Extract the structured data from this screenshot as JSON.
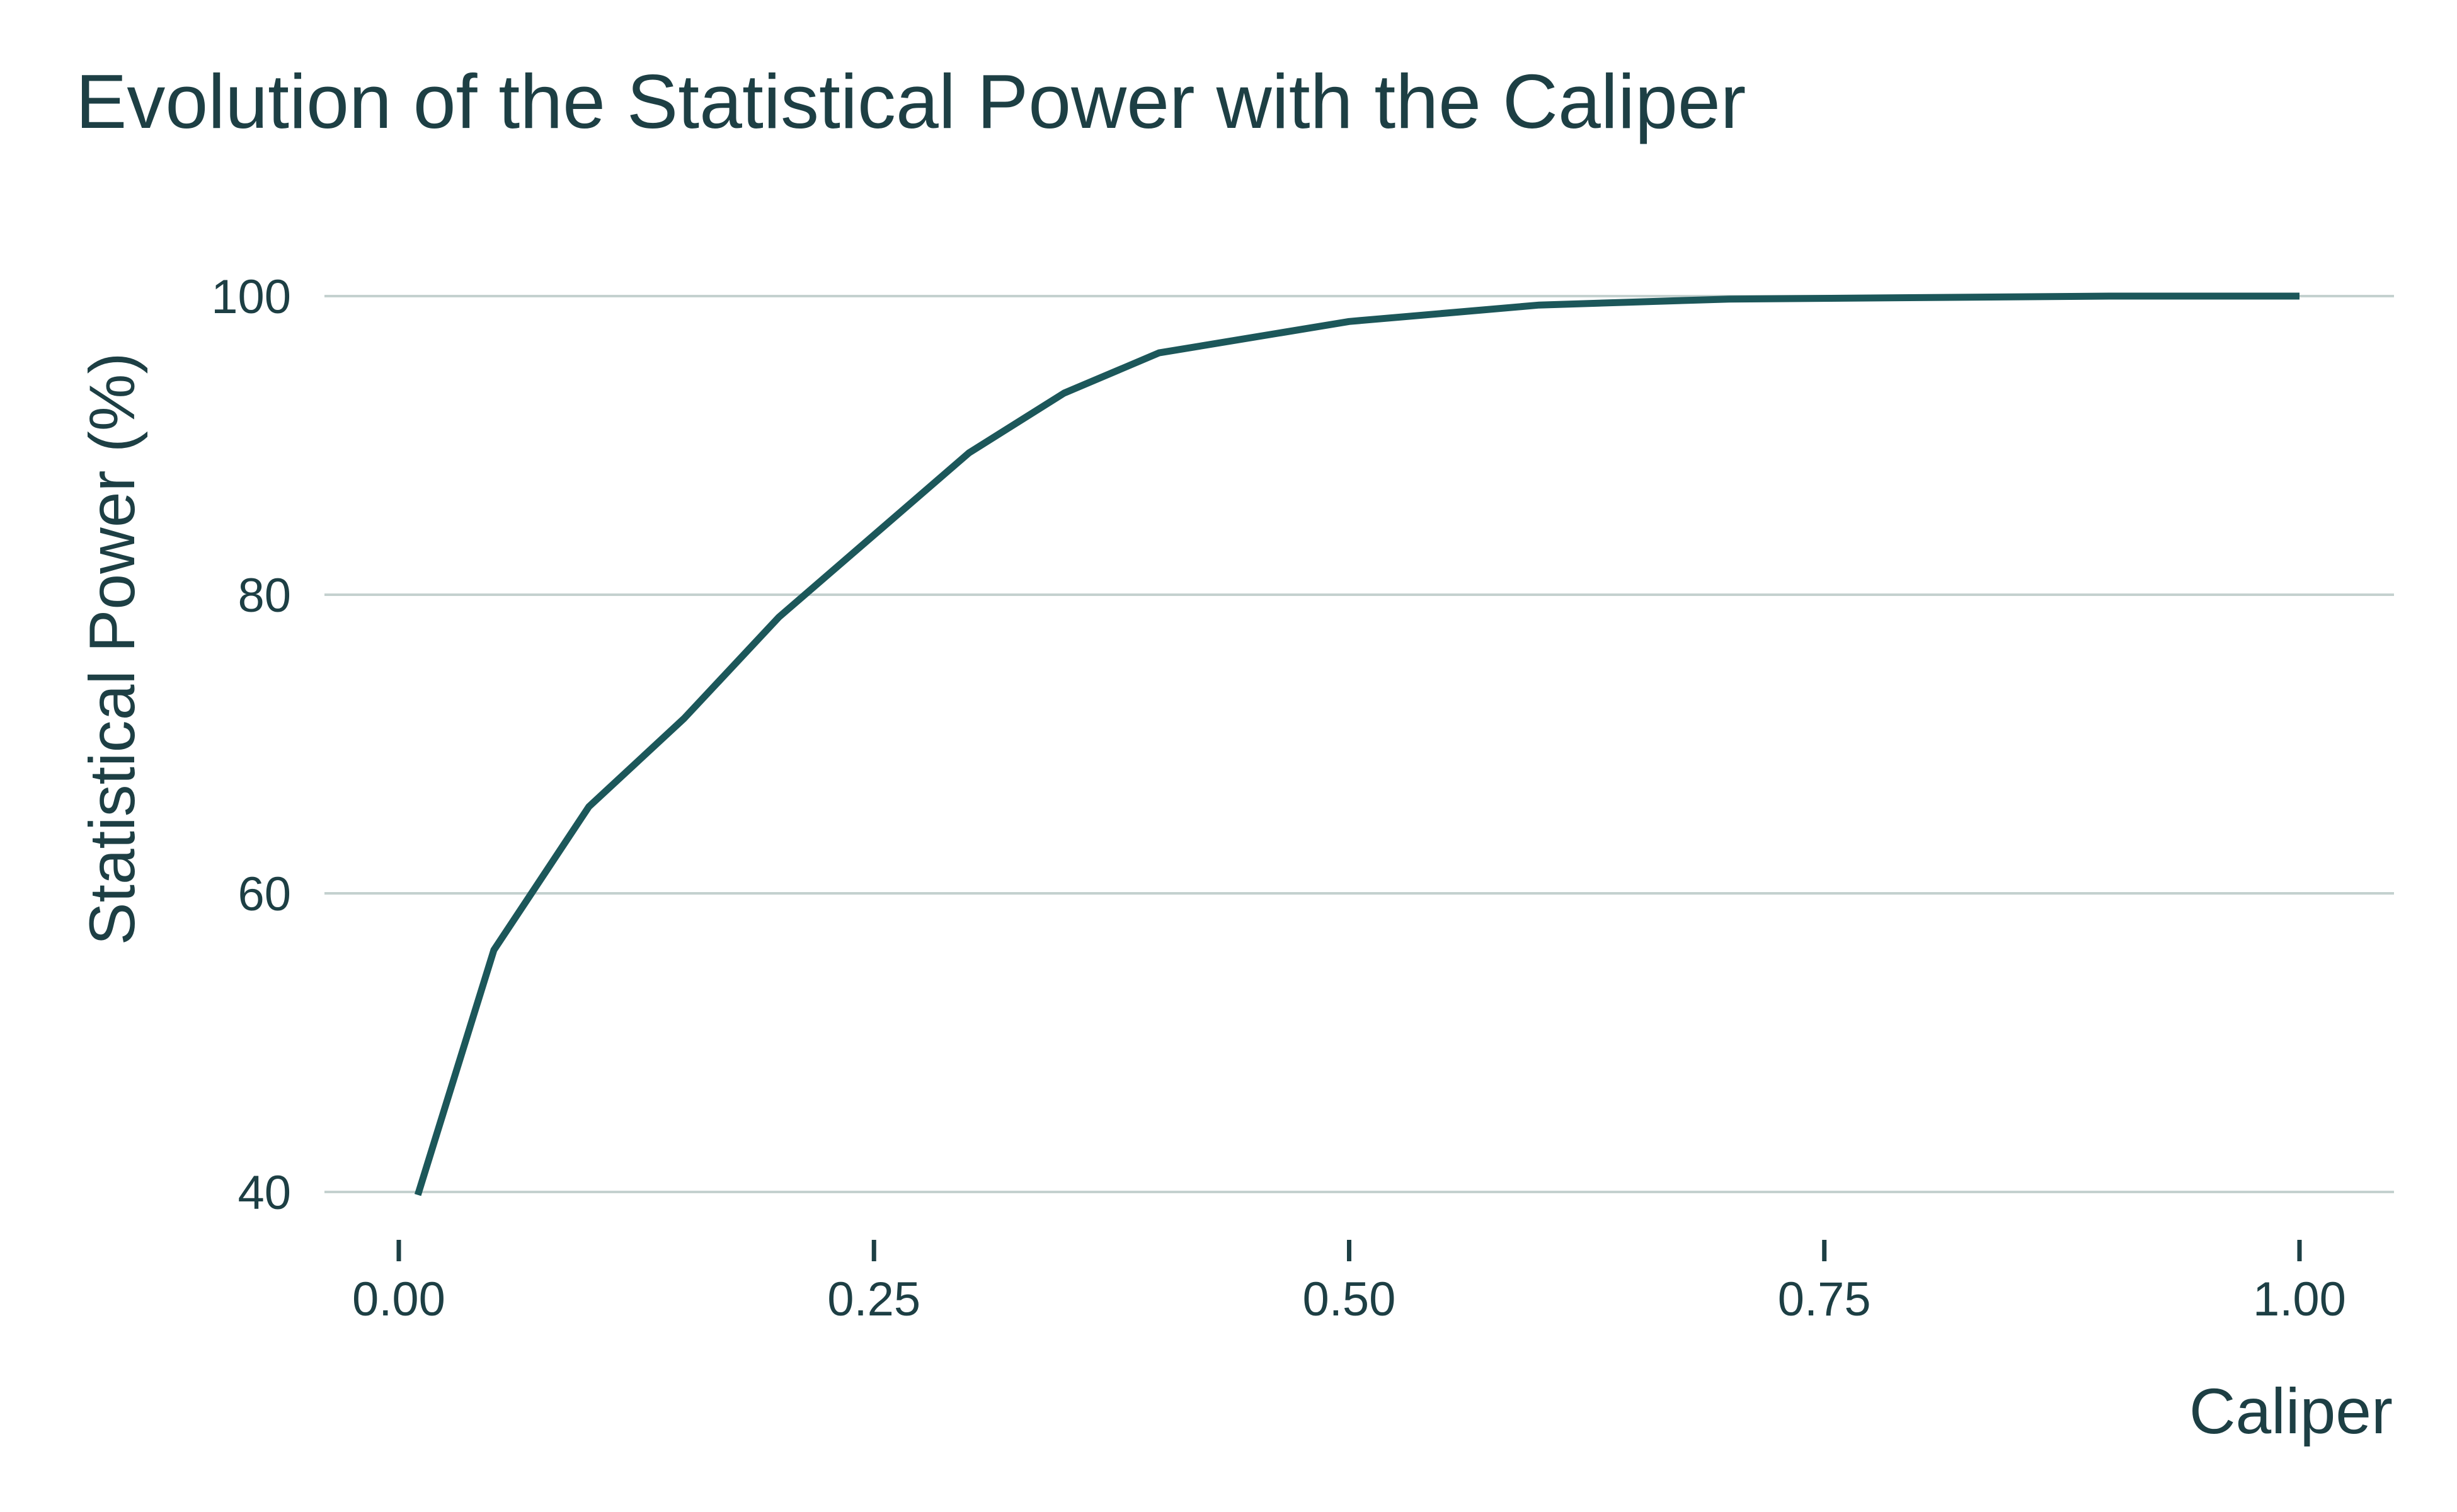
{
  "chart_data": {
    "type": "line",
    "title": "Evolution of the Statistical Power with the Caliper",
    "xlabel": "Caliper",
    "ylabel": "Statistical Power (%)",
    "xlim": [
      -0.04,
      1.05
    ],
    "ylim": [
      40,
      100
    ],
    "x_ticks": [
      0.0,
      0.25,
      0.5,
      0.75,
      1.0
    ],
    "x_tick_labels": [
      "0.00",
      "0.25",
      "0.50",
      "0.75",
      "1.00"
    ],
    "y_ticks": [
      40,
      60,
      80,
      100
    ],
    "y_tick_labels": [
      "40",
      "60",
      "80",
      "100"
    ],
    "grid": "horizontal",
    "legend": "none",
    "line_color": "#1c575a",
    "series": [
      {
        "x": [
          0.01,
          0.05,
          0.1,
          0.15,
          0.2,
          0.25,
          0.3,
          0.35,
          0.4,
          0.5,
          0.6,
          0.7,
          0.8,
          0.9,
          1.0
        ],
        "y": [
          39.8,
          56.2,
          65.8,
          71.7,
          78.5,
          84.0,
          89.5,
          93.5,
          96.2,
          98.3,
          99.4,
          99.8,
          99.9,
          100.0,
          100.0
        ]
      }
    ]
  }
}
